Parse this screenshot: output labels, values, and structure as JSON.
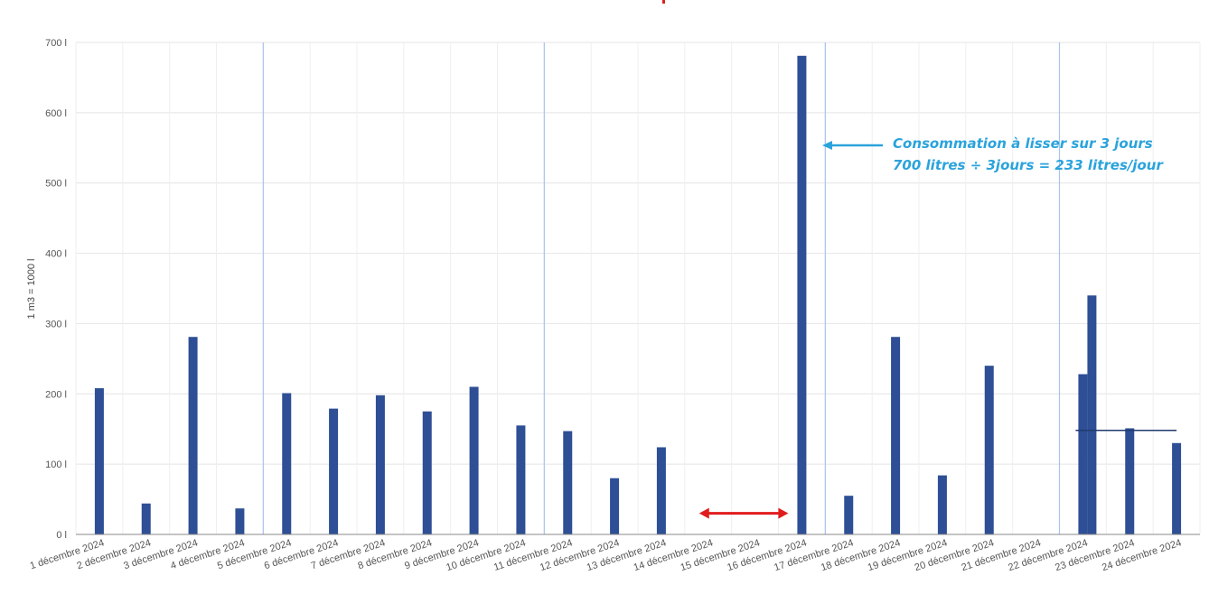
{
  "chart_data": {
    "type": "bar",
    "ylabel": "1 m3 = 1000 l",
    "ylim": [
      0,
      700
    ],
    "yticks": [
      "0 l",
      "100 l",
      "200 l",
      "300 l",
      "400 l",
      "500 l",
      "600 l",
      "700 l"
    ],
    "ytick_values": [
      0,
      100,
      200,
      300,
      400,
      500,
      600,
      700
    ],
    "categories": [
      "1 décembre 2024",
      "2 décembre 2024",
      "3 décembre 2024",
      "4 décembre 2024",
      "5 décembre 2024",
      "6 décembre 2024",
      "7 décembre 2024",
      "8 décembre 2024",
      "9 décembre 2024",
      "10 décembre 2024",
      "11 décembre 2024",
      "12 décembre 2024",
      "13 décembre 2024",
      "14 décembre 2024",
      "15 décembre 2024",
      "16 décembre 2024",
      "17 décembre 2024",
      "18 décembre 2024",
      "19 décembre 2024",
      "20 décembre 2024",
      "21 décembre 2024",
      "22 décembre 2024",
      "23 décembre 2024",
      "24 décembre 2024"
    ],
    "values": [
      208,
      44,
      281,
      37,
      201,
      179,
      198,
      175,
      210,
      155,
      147,
      80,
      124,
      0,
      0,
      681,
      55,
      281,
      84,
      240,
      0,
      228,
      151,
      130
    ],
    "extra_bars": [
      {
        "category": "22 décembre 2024",
        "value": 340
      }
    ],
    "vertical_markers": [
      "4 décembre 2024",
      "10 décembre 2024",
      "16 décembre 2024",
      "21 décembre 2024"
    ],
    "reference_line": {
      "from": "22 décembre 2024",
      "to": "24 décembre 2024",
      "value": 148
    },
    "red_arrow": {
      "from": "14 décembre 2024",
      "to": "16 décembre 2024",
      "value": 30
    },
    "grid": true,
    "bar_color": "#2e4f95",
    "annotation": {
      "lines": [
        "Consommation à lisser sur 3 jours",
        "700 litres ÷ 3jours =  233 litres/jour"
      ],
      "color": "#2aa3dc"
    }
  }
}
